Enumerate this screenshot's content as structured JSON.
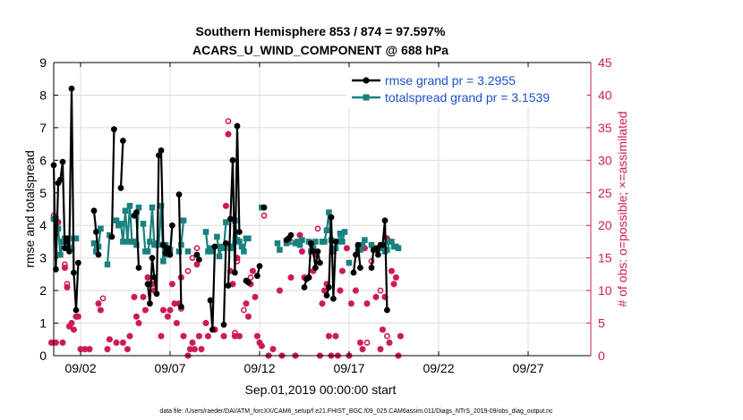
{
  "chart_data": {
    "type": "line",
    "title_line1": "Southern Hemisphere 853 / 874 = 97.597%",
    "title_line2": "ACARS_U_WIND_COMPONENT @ 688 hPa",
    "xlabel": "Sep.01,2019 00:00:00 start",
    "ylabel_left": "rmse and totalspread",
    "ylabel_right": "# of obs: o=possible; ×=assimilated",
    "footer": "data file: /Users/raeder/DAI/ATM_forcXX/CAM6_setup/f.e21.FHIST_BGC.f09_025.CAM6assim.011/Diags_NTrS_2019-09/obs_diag_output.nc",
    "xlim": [
      0.5,
      30.5
    ],
    "ylim_left": [
      0,
      9
    ],
    "ylim_right": [
      0,
      45
    ],
    "yticks_left": [
      "0",
      "1",
      "2",
      "3",
      "4",
      "5",
      "6",
      "7",
      "8",
      "9"
    ],
    "yticks_right": [
      "0",
      "5",
      "10",
      "15",
      "20",
      "25",
      "30",
      "35",
      "40",
      "45"
    ],
    "xticks": [
      {
        "day": 2,
        "label": "09/02"
      },
      {
        "day": 7,
        "label": "09/07"
      },
      {
        "day": 12,
        "label": "09/12"
      },
      {
        "day": 17,
        "label": "09/17"
      },
      {
        "day": 22,
        "label": "09/22"
      },
      {
        "day": 27,
        "label": "09/27"
      }
    ],
    "colors": {
      "rmse": "#000000",
      "spread": "#1a8080",
      "obs": "#cc1a55"
    },
    "legend": [
      {
        "key": "rmse",
        "label": "rmse grand pr = 3.2955"
      },
      {
        "key": "spread",
        "label": "totalspread grand pr = 3.1539"
      }
    ],
    "rmse_segments": [
      [
        [
          0.5,
          5.85
        ],
        [
          0.62,
          2.65
        ],
        [
          0.75,
          5.3
        ],
        [
          0.87,
          5.4
        ],
        [
          1.0,
          5.95
        ],
        [
          1.12,
          3.3
        ],
        [
          1.25,
          3.6
        ],
        [
          1.37,
          3.2
        ],
        [
          1.5,
          8.2
        ],
        [
          1.62,
          2.55
        ],
        [
          1.75,
          1.4
        ],
        [
          1.87,
          2.85
        ]
      ],
      [
        [
          2.75,
          4.45
        ],
        [
          2.87,
          3.8
        ],
        [
          3.0,
          3.1
        ]
      ],
      [
        [
          3.75,
          3.65
        ],
        [
          3.87,
          6.95
        ]
      ],
      [
        [
          4.25,
          5.15
        ],
        [
          4.37,
          6.6
        ]
      ],
      [
        [
          5.0,
          4.3
        ],
        [
          5.12,
          4.4
        ],
        [
          5.25,
          2.7
        ]
      ],
      [
        [
          5.75,
          2.2
        ],
        [
          5.87,
          1.6
        ],
        [
          6.0,
          3.0
        ],
        [
          6.12,
          2.4
        ],
        [
          6.25,
          1.9
        ],
        [
          6.37,
          6.15
        ],
        [
          6.5,
          6.3
        ],
        [
          6.62,
          3.4
        ],
        [
          6.75,
          3.15
        ],
        [
          6.87,
          3.3
        ],
        [
          7.0,
          3.1
        ],
        [
          7.12,
          4.0
        ]
      ],
      [
        [
          7.5,
          4.95
        ],
        [
          7.62,
          1.5
        ]
      ],
      [
        [
          8.5,
          3.1
        ],
        [
          8.62,
          2.95
        ]
      ],
      [
        [
          9.25,
          1.7
        ],
        [
          9.37,
          0.8
        ],
        [
          9.5,
          3.35
        ]
      ],
      [
        [
          10.0,
          0.95
        ],
        [
          10.12,
          3.45
        ]
      ],
      [
        [
          10.25,
          2.15
        ],
        [
          10.37,
          4.2
        ],
        [
          10.5,
          6.0
        ],
        [
          10.62,
          2.55
        ],
        [
          10.75,
          7.05
        ],
        [
          10.87,
          3.8
        ]
      ],
      [
        [
          11.25,
          2.3
        ],
        [
          11.37,
          2.25
        ]
      ],
      [
        [
          11.87,
          2.45
        ],
        [
          12.0,
          2.75
        ]
      ],
      [
        [
          12.25,
          4.55
        ]
      ],
      [
        [
          13.5,
          3.55
        ],
        [
          13.62,
          3.6
        ],
        [
          13.75,
          3.7
        ]
      ],
      [
        [
          14.5,
          2.1
        ],
        [
          14.62,
          2.35
        ],
        [
          14.75,
          2.4
        ],
        [
          14.87,
          3.45
        ],
        [
          15.0,
          3.2
        ],
        [
          15.12,
          2.7
        ],
        [
          15.25,
          3.2
        ],
        [
          15.37,
          2.85
        ]
      ],
      [
        [
          15.75,
          1.85
        ],
        [
          15.87,
          2.1
        ],
        [
          16.0,
          4.25
        ],
        [
          16.12,
          1.75
        ],
        [
          16.25,
          3.5
        ]
      ],
      [
        [
          17.25,
          2.55
        ],
        [
          17.37,
          3.1
        ],
        [
          17.5,
          3.4
        ],
        [
          17.62,
          2.7
        ]
      ],
      [
        [
          18.25,
          2.7
        ],
        [
          18.37,
          3.25
        ],
        [
          18.5,
          3.3
        ],
        [
          18.62,
          3.1
        ],
        [
          18.75,
          3.4
        ],
        [
          18.87,
          3.4
        ],
        [
          19.0,
          4.15
        ],
        [
          19.12,
          1.4
        ]
      ]
    ],
    "spread_segments": [
      [
        [
          0.5,
          4.2
        ],
        [
          0.62,
          4.2
        ],
        [
          0.75,
          3.9
        ],
        [
          0.87,
          3.1
        ],
        [
          1.0,
          3.5
        ],
        [
          1.12,
          3.6
        ],
        [
          1.25,
          3.5
        ],
        [
          1.37,
          3.3
        ],
        [
          1.5,
          3.3
        ],
        [
          1.62,
          3.6
        ],
        [
          1.75,
          3.6
        ]
      ],
      [
        [
          2.75,
          3.45
        ],
        [
          2.87,
          3.2
        ],
        [
          3.0,
          3.35
        ],
        [
          3.12,
          3.9
        ]
      ],
      [
        [
          3.5,
          2.8
        ],
        [
          3.62,
          3.7
        ]
      ],
      [
        [
          4.0,
          4.15
        ],
        [
          4.12,
          4.0
        ],
        [
          4.25,
          4.05
        ],
        [
          4.37,
          3.5
        ],
        [
          4.5,
          4.45
        ],
        [
          4.62,
          3.5
        ],
        [
          4.75,
          4.6
        ],
        [
          4.87,
          3.5
        ],
        [
          5.0,
          3.5
        ],
        [
          5.12,
          3.4
        ],
        [
          5.25,
          4.55
        ]
      ],
      [
        [
          5.5,
          4.05
        ],
        [
          5.62,
          3.2
        ],
        [
          5.75,
          3.2
        ],
        [
          5.87,
          3.5
        ],
        [
          6.0,
          4.55
        ],
        [
          6.12,
          3.4
        ],
        [
          6.25,
          3.45
        ],
        [
          6.37,
          3.4
        ],
        [
          6.5,
          4.6
        ],
        [
          6.62,
          2.9
        ],
        [
          6.75,
          3.4
        ],
        [
          6.87,
          3.1
        ],
        [
          7.0,
          3.25
        ]
      ],
      [
        [
          7.5,
          3.2
        ],
        [
          7.62,
          3.4
        ],
        [
          7.75,
          4.15
        ]
      ],
      [
        [
          8.0,
          3.2
        ]
      ],
      [
        [
          9.0,
          3.8
        ],
        [
          9.12,
          3.2
        ],
        [
          9.25,
          3.3
        ],
        [
          9.37,
          3.2
        ]
      ],
      [
        [
          9.62,
          3.65
        ],
        [
          9.75,
          3.05
        ],
        [
          9.87,
          3.35
        ],
        [
          10.0,
          3.3
        ],
        [
          10.12,
          4.1
        ]
      ],
      [
        [
          10.37,
          3.3
        ],
        [
          10.5,
          3.35
        ],
        [
          10.62,
          4.15
        ],
        [
          10.75,
          3.55
        ],
        [
          10.87,
          3.5
        ]
      ],
      [
        [
          11.0,
          3.35
        ],
        [
          11.12,
          3.2
        ],
        [
          11.25,
          3.6
        ],
        [
          11.37,
          3.6
        ]
      ],
      [
        [
          12.12,
          4.55
        ]
      ],
      [
        [
          13.0,
          3.45
        ],
        [
          13.12,
          3.25
        ]
      ],
      [
        [
          13.5,
          3.45
        ],
        [
          13.62,
          3.5
        ]
      ],
      [
        [
          14.0,
          3.45
        ],
        [
          14.12,
          3.5
        ],
        [
          14.25,
          3.4
        ],
        [
          14.37,
          3.55
        ]
      ],
      [
        [
          14.75,
          3.5
        ],
        [
          14.87,
          3.2
        ],
        [
          15.0,
          3.3
        ],
        [
          15.12,
          3.5
        ]
      ],
      [
        [
          15.5,
          3.5
        ],
        [
          15.62,
          3.5
        ],
        [
          15.75,
          3.85
        ],
        [
          15.87,
          4.4
        ],
        [
          16.0,
          3.55
        ],
        [
          16.12,
          3.2
        ],
        [
          16.25,
          3.3
        ],
        [
          16.37,
          3.5
        ],
        [
          16.5,
          3.75
        ],
        [
          16.62,
          3.5
        ],
        [
          16.75,
          3.8
        ]
      ],
      [
        [
          17.0,
          2.85
        ]
      ],
      [
        [
          17.5,
          3.3
        ],
        [
          17.62,
          3.25
        ],
        [
          17.75,
          3.4
        ],
        [
          17.87,
          3.55
        ]
      ],
      [
        [
          18.25,
          3.4
        ],
        [
          18.37,
          3.25
        ]
      ],
      [
        [
          18.87,
          3.3
        ],
        [
          19.0,
          3.2
        ],
        [
          19.12,
          3.25
        ],
        [
          19.25,
          3.5
        ],
        [
          19.37,
          3.5
        ],
        [
          19.5,
          3.35
        ],
        [
          19.62,
          3.35
        ],
        [
          19.75,
          3.3
        ]
      ]
    ],
    "obs_possible": [
      [
        0.5,
        21.5
      ],
      [
        1.12,
        14.0
      ],
      [
        1.25,
        11.0
      ],
      [
        3.25,
        8.8
      ],
      [
        7.62,
        7.2
      ],
      [
        8.0,
        13.0
      ],
      [
        8.25,
        15.0
      ],
      [
        8.5,
        16.5
      ],
      [
        9.5,
        4.0
      ],
      [
        10.25,
        36.0
      ],
      [
        10.62,
        3.5
      ],
      [
        10.75,
        14.5
      ],
      [
        11.12,
        7.0
      ],
      [
        11.5,
        12.0
      ],
      [
        12.25,
        21.5
      ],
      [
        13.75,
        17.5
      ],
      [
        15.25,
        19.5
      ],
      [
        18.0,
        2.0
      ],
      [
        18.25,
        14.5
      ],
      [
        18.75,
        10.0
      ],
      [
        19.12,
        3.0
      ]
    ],
    "obs_assimilated": [
      [
        0.37,
        2.0
      ],
      [
        0.5,
        21.0
      ],
      [
        0.62,
        2.0
      ],
      [
        0.75,
        20.5
      ],
      [
        1.0,
        2.0
      ],
      [
        1.12,
        13.5
      ],
      [
        1.25,
        10.5
      ],
      [
        1.37,
        4.5
      ],
      [
        1.5,
        5.0
      ],
      [
        1.62,
        4.0
      ],
      [
        1.75,
        6.0
      ],
      [
        1.87,
        6.0
      ],
      [
        2.0,
        1.0
      ],
      [
        2.25,
        1.0
      ],
      [
        2.5,
        1.0
      ],
      [
        3.0,
        8.0
      ],
      [
        3.12,
        7.0
      ],
      [
        3.5,
        1.0
      ],
      [
        3.62,
        2.5
      ],
      [
        4.0,
        2.0
      ],
      [
        4.37,
        2.0
      ],
      [
        4.62,
        1.0
      ],
      [
        4.75,
        3.0
      ],
      [
        5.0,
        9.0
      ],
      [
        5.12,
        6.0
      ],
      [
        5.25,
        5.0
      ],
      [
        5.5,
        9.0
      ],
      [
        5.62,
        7.0
      ],
      [
        5.75,
        12.0
      ],
      [
        5.87,
        11.0
      ],
      [
        6.0,
        11.0
      ],
      [
        6.12,
        10.0
      ],
      [
        6.5,
        3.0
      ],
      [
        6.62,
        7.0
      ],
      [
        6.87,
        6.0
      ],
      [
        7.0,
        7.0
      ],
      [
        7.12,
        11.0
      ],
      [
        7.25,
        8.0
      ],
      [
        7.37,
        5.0
      ],
      [
        7.5,
        8.0
      ],
      [
        7.62,
        12.0
      ],
      [
        7.75,
        3.0
      ],
      [
        8.0,
        0.0
      ],
      [
        8.12,
        1.0
      ],
      [
        8.25,
        2.0
      ],
      [
        8.37,
        1.0
      ],
      [
        8.5,
        14.0
      ],
      [
        8.62,
        3.0
      ],
      [
        8.75,
        1.0
      ],
      [
        9.0,
        5.0
      ],
      [
        9.12,
        3.0
      ],
      [
        9.5,
        4.0
      ],
      [
        10.0,
        3.0
      ],
      [
        10.12,
        23.0
      ],
      [
        10.25,
        34.0
      ],
      [
        10.37,
        13.0
      ],
      [
        10.5,
        11.0
      ],
      [
        10.62,
        3.0
      ],
      [
        10.75,
        15.0
      ],
      [
        10.87,
        3.0
      ],
      [
        11.25,
        8.0
      ],
      [
        11.37,
        6.0
      ],
      [
        11.5,
        11.0
      ],
      [
        11.62,
        13.0
      ],
      [
        11.75,
        9.0
      ],
      [
        11.87,
        3.0
      ],
      [
        12.0,
        2.0
      ],
      [
        12.12,
        1.5
      ],
      [
        12.5,
        0.0
      ],
      [
        12.75,
        1.0
      ],
      [
        13.12,
        10.0
      ],
      [
        13.25,
        0.0
      ],
      [
        13.75,
        12.0
      ],
      [
        14.0,
        0.0
      ],
      [
        14.25,
        18.5
      ],
      [
        14.37,
        16.0
      ],
      [
        14.5,
        12.0
      ],
      [
        14.75,
        12.0
      ],
      [
        15.0,
        13.0
      ],
      [
        15.12,
        15.5
      ],
      [
        15.37,
        0.0
      ],
      [
        15.5,
        8.0
      ],
      [
        15.62,
        10.0
      ],
      [
        15.75,
        11.0
      ],
      [
        15.87,
        3.0
      ],
      [
        16.0,
        0.0
      ],
      [
        16.25,
        3.0
      ],
      [
        16.37,
        0.0
      ],
      [
        16.5,
        10.0
      ],
      [
        16.62,
        13.0
      ],
      [
        16.87,
        16.5
      ],
      [
        17.0,
        0.0
      ],
      [
        17.12,
        8.0
      ],
      [
        17.37,
        10.0
      ],
      [
        17.62,
        2.0
      ],
      [
        17.75,
        1.0
      ],
      [
        17.87,
        16.5
      ],
      [
        18.0,
        8.0
      ],
      [
        18.5,
        9.0
      ],
      [
        18.75,
        1.0
      ],
      [
        18.87,
        4.0
      ],
      [
        19.0,
        9.0
      ],
      [
        19.12,
        18.0
      ],
      [
        19.25,
        2.0
      ],
      [
        19.37,
        13.0
      ],
      [
        19.5,
        11.0
      ],
      [
        19.62,
        12.0
      ],
      [
        19.75,
        0.0
      ],
      [
        19.87,
        3.0
      ]
    ]
  }
}
